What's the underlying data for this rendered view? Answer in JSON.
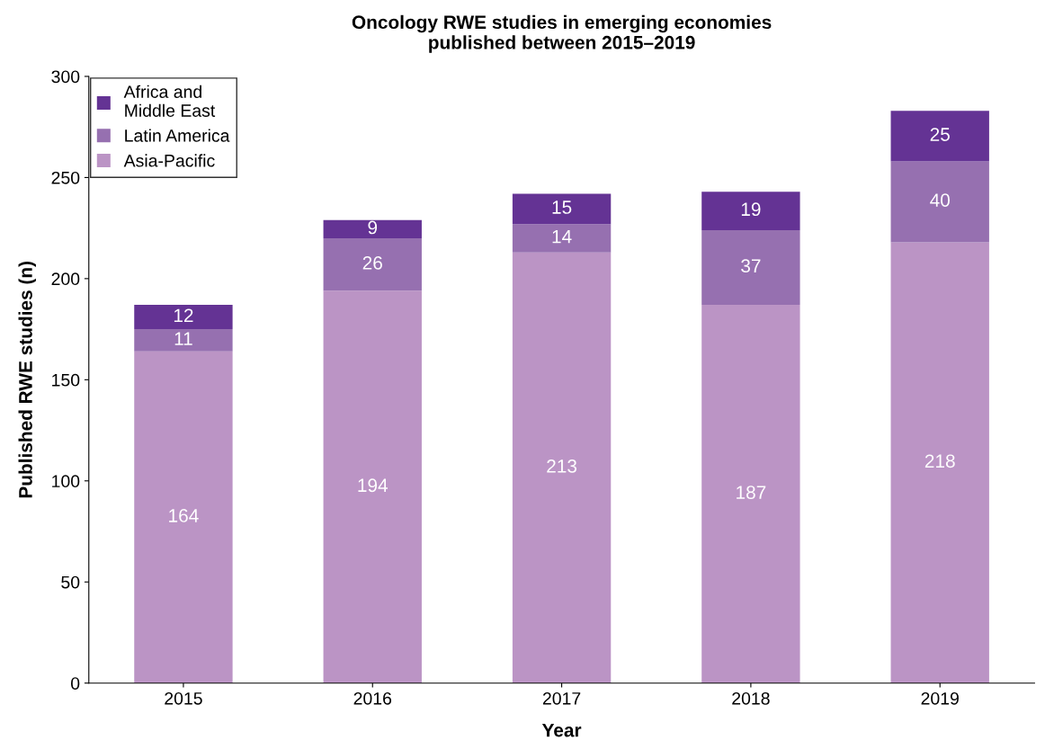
{
  "chart_data": {
    "type": "bar",
    "title": "Oncology RWE studies in emerging economies\npublished between 2015–2019",
    "xlabel": "Year",
    "ylabel": "Published RWE studies (n)",
    "categories": [
      "2015",
      "2016",
      "2017",
      "2018",
      "2019"
    ],
    "stacked": true,
    "series": [
      {
        "name": "Asia-Pacific",
        "color": "#bb94c5",
        "values": [
          164,
          194,
          213,
          187,
          218
        ]
      },
      {
        "name": "Latin America",
        "color": "#9670b0",
        "values": [
          11,
          26,
          14,
          37,
          40
        ]
      },
      {
        "name": "Africa and\nMiddle East",
        "color": "#643394",
        "values": [
          12,
          9,
          15,
          19,
          25
        ]
      }
    ],
    "ylim": [
      0,
      300
    ],
    "yticks": [
      0,
      50,
      100,
      150,
      200,
      250,
      300
    ],
    "data_labels": true,
    "grid": false,
    "legend": "top left"
  }
}
